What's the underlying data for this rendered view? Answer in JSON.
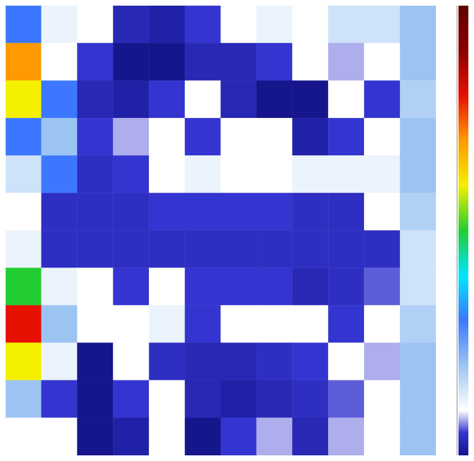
{
  "chart_data": {
    "type": "heatmap",
    "tick_labels": false,
    "grid": false,
    "xlim": [
      0,
      12
    ],
    "ylim": [
      0,
      12
    ],
    "cells": [
      [
        0.3,
        0.12,
        0.1,
        0.03,
        0.02,
        0.05,
        0.1,
        0.12,
        0.1,
        0.15,
        0.15,
        0.2
      ],
      [
        0.7,
        0.1,
        0.05,
        0.0,
        0.0,
        0.03,
        0.03,
        0.05,
        0.1,
        0.08,
        0.1,
        0.2
      ],
      [
        0.6,
        0.3,
        0.03,
        0.02,
        0.05,
        0.1,
        0.03,
        0.0,
        0.0,
        0.1,
        0.05,
        0.18
      ],
      [
        0.3,
        0.2,
        0.05,
        0.08,
        0.1,
        0.05,
        0.1,
        0.1,
        0.02,
        0.05,
        0.1,
        0.2
      ],
      [
        0.15,
        0.3,
        0.04,
        0.05,
        0.1,
        0.12,
        0.1,
        0.1,
        0.12,
        0.12,
        0.12,
        0.2
      ],
      [
        0.1,
        0.04,
        0.04,
        0.04,
        0.05,
        0.05,
        0.05,
        0.05,
        0.04,
        0.04,
        0.1,
        0.18
      ],
      [
        0.12,
        0.04,
        0.04,
        0.04,
        0.04,
        0.04,
        0.04,
        0.04,
        0.04,
        0.04,
        0.04,
        0.15
      ],
      [
        0.5,
        0.12,
        0.1,
        0.05,
        0.1,
        0.05,
        0.05,
        0.05,
        0.03,
        0.04,
        0.06,
        0.15
      ],
      [
        0.8,
        0.2,
        0.1,
        0.1,
        0.12,
        0.05,
        0.1,
        0.1,
        0.1,
        0.05,
        0.1,
        0.18
      ],
      [
        0.6,
        0.12,
        0.0,
        0.1,
        0.04,
        0.03,
        0.03,
        0.04,
        0.05,
        0.1,
        0.08,
        0.2
      ],
      [
        0.2,
        0.05,
        0.0,
        0.05,
        0.1,
        0.03,
        0.02,
        0.03,
        0.04,
        0.06,
        0.1,
        0.2
      ],
      [
        0.1,
        0.1,
        0.0,
        0.02,
        0.1,
        0.0,
        0.05,
        0.08,
        0.03,
        0.08,
        0.1,
        0.2
      ]
    ],
    "colorbar_range": [
      0,
      1
    ]
  }
}
